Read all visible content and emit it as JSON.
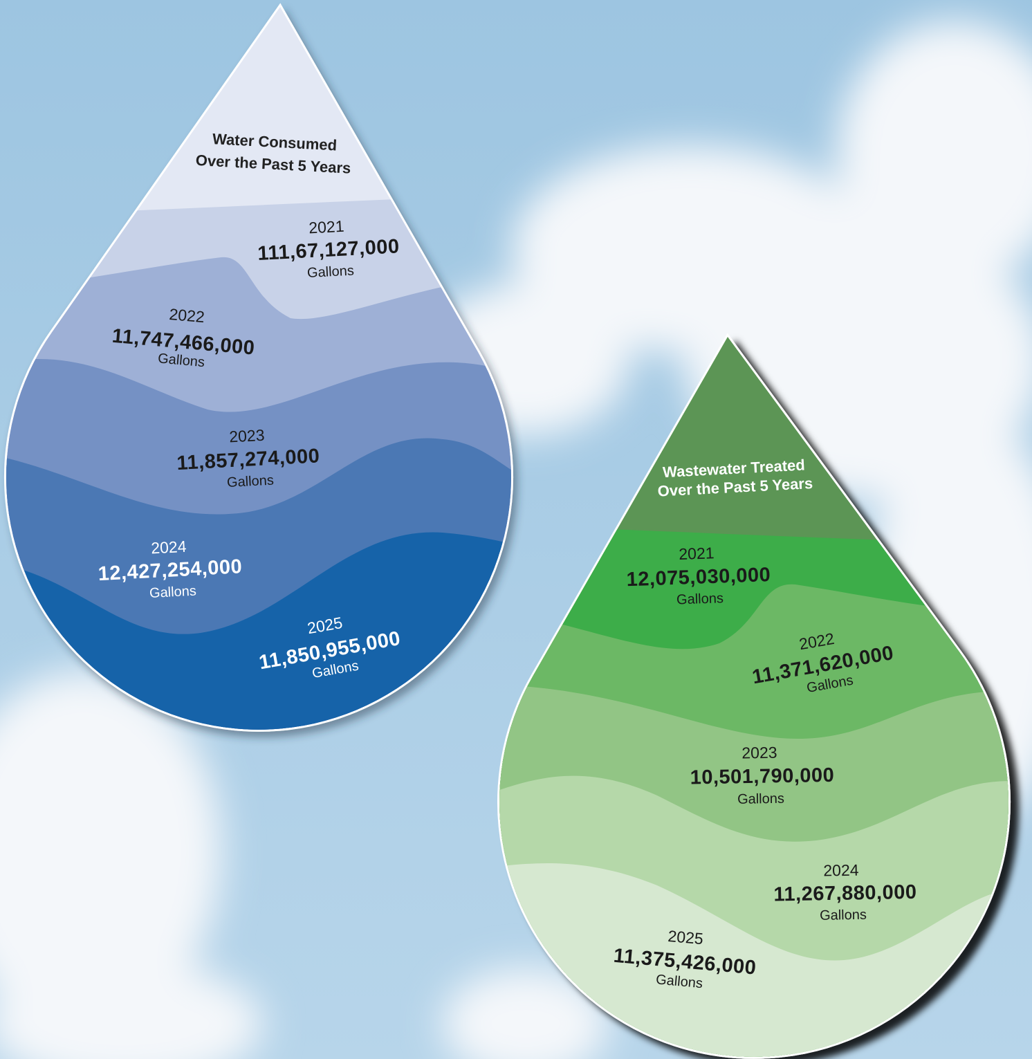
{
  "drops": [
    {
      "title": [
        "Water Consumed",
        "Over the Past 5 Years"
      ],
      "layers": [
        {
          "year": "2021",
          "amount": "111,67,127,000",
          "unit": "Gallons"
        },
        {
          "year": "2022",
          "amount": "11,747,466,000",
          "unit": "Gallons"
        },
        {
          "year": "2023",
          "amount": "11,857,274,000",
          "unit": "Gallons"
        },
        {
          "year": "2024",
          "amount": "12,427,254,000",
          "unit": "Gallons"
        },
        {
          "year": "2025",
          "amount": "11,850,955,000",
          "unit": "Gallons"
        }
      ]
    },
    {
      "title": [
        "Wastewater Treated",
        "Over the Past 5 Years"
      ],
      "layers": [
        {
          "year": "2021",
          "amount": "12,075,030,000",
          "unit": "Gallons"
        },
        {
          "year": "2022",
          "amount": "11,371,620,000",
          "unit": "Gallons"
        },
        {
          "year": "2023",
          "amount": "10,501,790,000",
          "unit": "Gallons"
        },
        {
          "year": "2024",
          "amount": "11,267,880,000",
          "unit": "Gallons"
        },
        {
          "year": "2025",
          "amount": "11,375,426,000",
          "unit": "Gallons"
        }
      ]
    }
  ]
}
